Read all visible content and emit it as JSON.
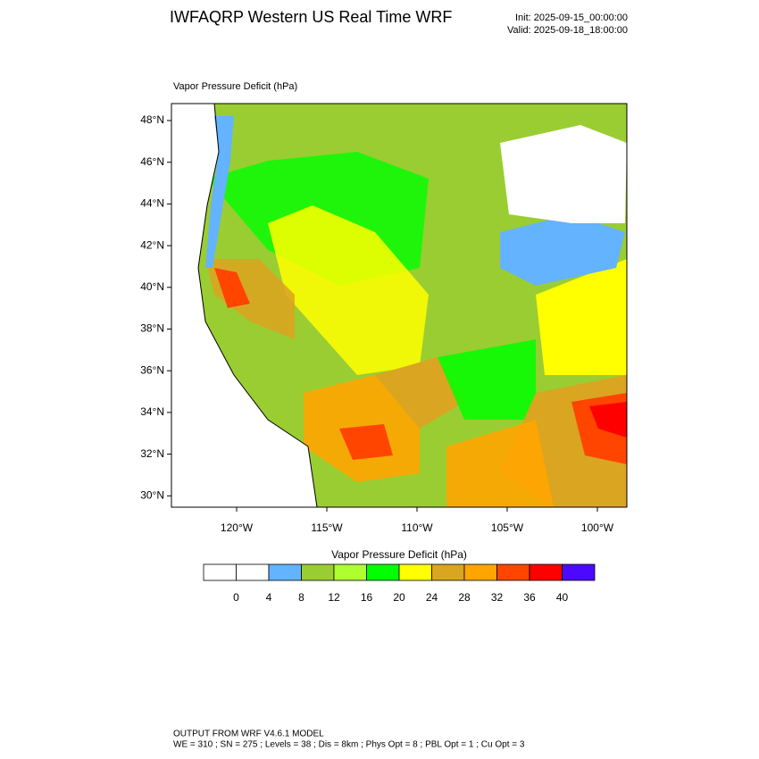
{
  "header": {
    "title": "IWFAQRP Western US Real Time WRF",
    "init": "Init: 2025-09-15_00:00:00",
    "valid": "Valid: 2025-09-18_18:00:00"
  },
  "map": {
    "title": "Vapor Pressure Deficit   (hPa)",
    "lat_labels": [
      "48°N",
      "46°N",
      "44°N",
      "42°N",
      "40°N",
      "38°N",
      "36°N",
      "34°N",
      "32°N",
      "30°N"
    ],
    "lon_labels": [
      "120°W",
      "115°W",
      "110°W",
      "105°W",
      "100°W"
    ]
  },
  "colorbar": {
    "title": "Vapor Pressure Deficit  (hPa)",
    "colors": [
      "#ffffff",
      "#ffffff",
      "#63b3ff",
      "#9acd32",
      "#adff2f",
      "#00ff00",
      "#ffff00",
      "#daa520",
      "#ffa500",
      "#ff4500",
      "#ff0000",
      "#4b0aff"
    ],
    "ticks": [
      0,
      4,
      8,
      12,
      16,
      20,
      24,
      28,
      32,
      36,
      40
    ]
  },
  "footer": {
    "line1": "OUTPUT FROM WRF V4.6.1 MODEL",
    "line2": "WE = 310 ; SN = 275 ; Levels = 38 ; Dis = 8km ; Phys Opt = 8 ; PBL Opt = 1 ; Cu Opt = 3"
  }
}
